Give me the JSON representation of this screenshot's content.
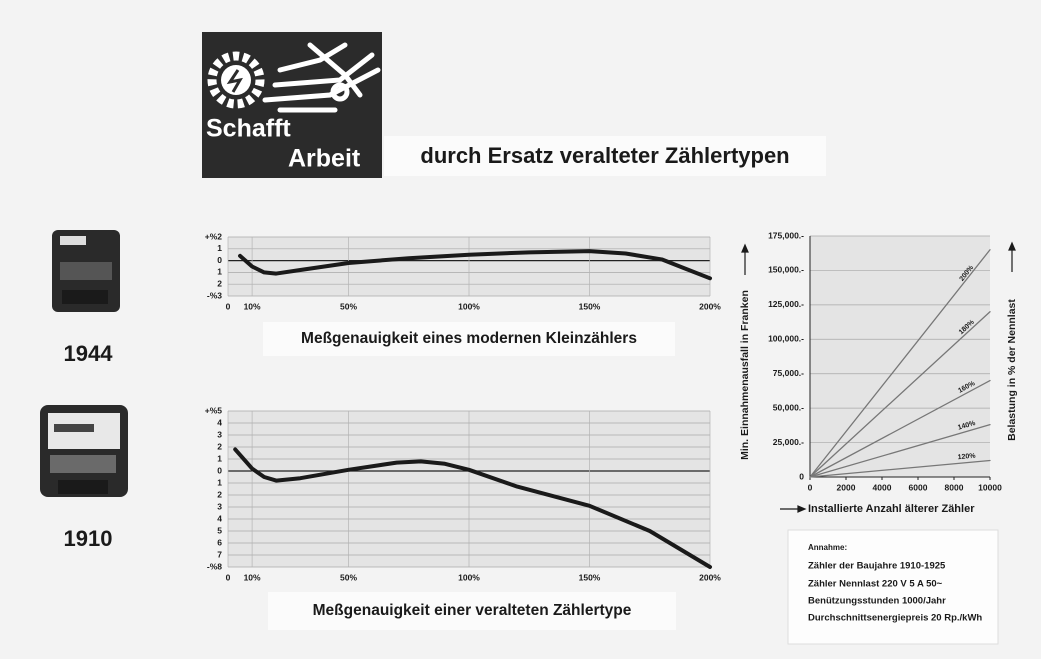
{
  "logo": {
    "line1": "Schafft",
    "line2": "Arbeit"
  },
  "title": "durch Ersatz veralteter Zählertypen",
  "years": [
    "1944",
    "1910"
  ],
  "note": {
    "heading": "Annahme:",
    "lines": [
      "Zähler der Baujahre 1910-1925",
      "Zähler Nennlast 220 V 5 A 50~",
      "Benützungsstunden 1000/Jahr",
      "Durchschnittsenergiepreis 20 Rp./kWh"
    ]
  },
  "chart_data": [
    {
      "type": "line",
      "title": "Meßgenauigkeit eines modernen Kleinzählers",
      "color": "#1a1a1a",
      "grid": "both",
      "x": [
        5,
        10,
        15,
        20,
        30,
        50,
        75,
        100,
        125,
        150,
        165,
        180,
        190,
        200
      ],
      "values": [
        0.4,
        -0.5,
        -1.0,
        -1.1,
        -0.8,
        -0.2,
        0.2,
        0.5,
        0.7,
        0.8,
        0.6,
        0.1,
        -0.7,
        -1.5
      ],
      "xlim": [
        0,
        200
      ],
      "xticks": [
        0,
        {
          "value": 10,
          "label": "10%"
        },
        {
          "value": 50,
          "label": "50%"
        },
        {
          "value": 100,
          "label": "100%"
        },
        {
          "value": 150,
          "label": "150%"
        },
        {
          "value": 200,
          "label": "200%"
        }
      ],
      "ylim": [
        -3,
        2
      ],
      "yticks": [
        {
          "value": 2,
          "label": "+%2"
        },
        1,
        0,
        {
          "value": -1,
          "label": "1"
        },
        {
          "value": -2,
          "label": "2"
        },
        {
          "value": -3,
          "label": "-%3"
        }
      ]
    },
    {
      "type": "line",
      "title": "Meßgenauigkeit einer veralteten Zählertype",
      "color": "#1a1a1a",
      "grid": "both",
      "x": [
        3,
        10,
        15,
        20,
        30,
        50,
        70,
        80,
        90,
        100,
        120,
        150,
        175,
        200
      ],
      "values": [
        1.8,
        0.2,
        -0.5,
        -0.8,
        -0.6,
        0.1,
        0.7,
        0.8,
        0.6,
        0.1,
        -1.3,
        -2.9,
        -5.0,
        -8.0
      ],
      "xlim": [
        0,
        200
      ],
      "xticks": [
        0,
        {
          "value": 10,
          "label": "10%"
        },
        {
          "value": 50,
          "label": "50%"
        },
        {
          "value": 100,
          "label": "100%"
        },
        {
          "value": 150,
          "label": "150%"
        },
        {
          "value": 200,
          "label": "200%"
        }
      ],
      "ylim": [
        -8,
        5
      ],
      "yticks": [
        {
          "value": 5,
          "label": "+%5"
        },
        4,
        3,
        2,
        1,
        0,
        {
          "value": -1,
          "label": "1"
        },
        {
          "value": -2,
          "label": "2"
        },
        {
          "value": -3,
          "label": "3"
        },
        {
          "value": -4,
          "label": "4"
        },
        {
          "value": -5,
          "label": "5"
        },
        {
          "value": -6,
          "label": "6"
        },
        {
          "value": -7,
          "label": "7"
        },
        {
          "value": -8,
          "label": "-%8"
        }
      ]
    },
    {
      "type": "line",
      "grid": "y",
      "ylabel": "Min. Einnahmenausfall in Franken",
      "xlabel": "Installierte Anzahl älterer Zähler",
      "legend_title": "Belastung in % der Nennlast",
      "x": [
        0,
        10000
      ],
      "series": [
        {
          "name": "200%",
          "color": "#777777",
          "values": [
            0,
            165000
          ]
        },
        {
          "name": "180%",
          "color": "#777777",
          "values": [
            0,
            120000
          ]
        },
        {
          "name": "160%",
          "color": "#777777",
          "values": [
            0,
            70000
          ]
        },
        {
          "name": "140%",
          "color": "#777777",
          "values": [
            0,
            38000
          ]
        },
        {
          "name": "120%",
          "color": "#777777",
          "values": [
            0,
            12000
          ]
        }
      ],
      "xlim": [
        0,
        10000
      ],
      "xticks": [
        0,
        2000,
        4000,
        6000,
        8000,
        10000
      ],
      "ylim": [
        0,
        175000
      ],
      "yticks": [
        0,
        {
          "value": 25000,
          "label": "25,000.-"
        },
        {
          "value": 50000,
          "label": "50,000.-"
        },
        {
          "value": 75000,
          "label": "75,000.-"
        },
        {
          "value": 100000,
          "label": "100,000.-"
        },
        {
          "value": 125000,
          "label": "125,000.-"
        },
        {
          "value": 150000,
          "label": "150,000.-"
        },
        {
          "value": 175000,
          "label": "175,000.-"
        }
      ]
    }
  ]
}
